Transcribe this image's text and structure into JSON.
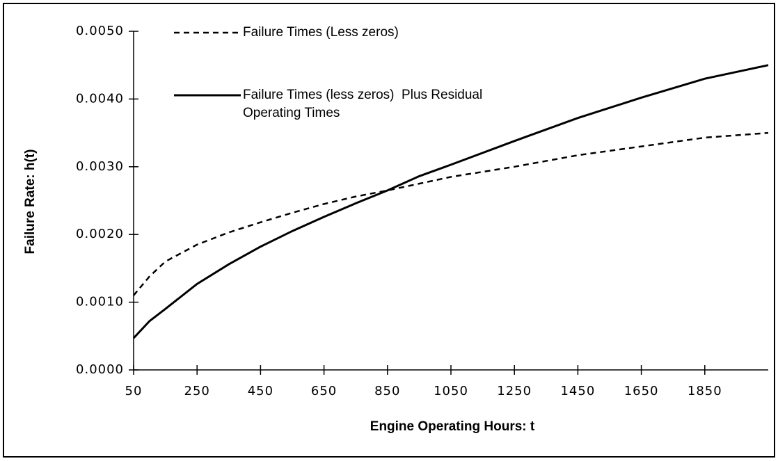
{
  "chart_data": {
    "type": "line",
    "xlabel": "Engine Operating Hours:  t",
    "ylabel": "Failure Rate:  h(t)",
    "x": [
      50,
      100,
      150,
      250,
      350,
      450,
      550,
      650,
      750,
      850,
      950,
      1050,
      1250,
      1450,
      1650,
      1850,
      2050
    ],
    "series": [
      {
        "name": "Failure Times (Less zeros)",
        "color": "#000000",
        "dash": true,
        "values": [
          0.0011,
          0.00138,
          0.0016,
          0.00185,
          0.00203,
          0.00218,
          0.00232,
          0.00245,
          0.00256,
          0.00265,
          0.00275,
          0.00285,
          0.003,
          0.00317,
          0.0033,
          0.00343,
          0.0035
        ]
      },
      {
        "name": "Failure Times (less zeros)  Plus Residual Operating Times",
        "color": "#000000",
        "dash": false,
        "values": [
          0.00047,
          0.00072,
          0.0009,
          0.00127,
          0.00156,
          0.00182,
          0.00205,
          0.00226,
          0.00246,
          0.00265,
          0.00286,
          0.00303,
          0.00338,
          0.00372,
          0.00402,
          0.0043,
          0.0045
        ]
      }
    ],
    "xlim": [
      50,
      2050
    ],
    "xticks": [
      50,
      250,
      450,
      650,
      850,
      1050,
      1250,
      1450,
      1650,
      1850
    ],
    "ylim": [
      0,
      0.005
    ],
    "yticks": [
      {
        "value": 0,
        "label": "0.0000"
      },
      {
        "value": 0.001,
        "label": "0.0010"
      },
      {
        "value": 0.002,
        "label": "0.0020"
      },
      {
        "value": 0.003,
        "label": "0.0030"
      },
      {
        "value": 0.004,
        "label": "0.0040"
      },
      {
        "value": 0.005,
        "label": "0.0050"
      }
    ],
    "grid": false,
    "legend": "upper left"
  }
}
